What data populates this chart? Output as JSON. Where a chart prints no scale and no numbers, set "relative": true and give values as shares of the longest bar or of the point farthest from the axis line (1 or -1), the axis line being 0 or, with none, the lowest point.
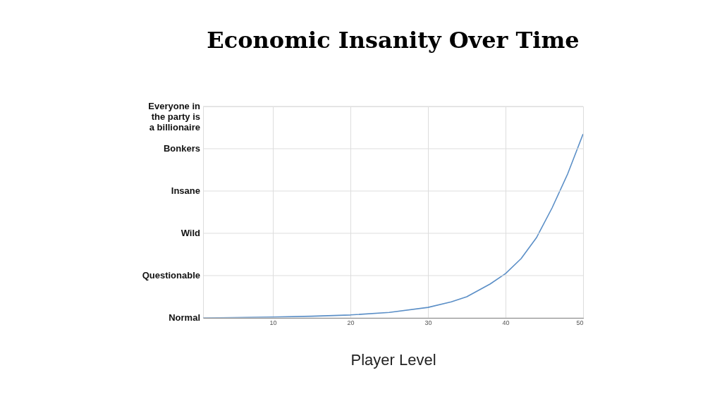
{
  "chart_data": {
    "type": "line",
    "title": "Economic Insanity Over Time",
    "xlabel": "Player Level",
    "x": [
      1,
      5,
      10,
      15,
      20,
      25,
      30,
      33,
      35,
      38,
      40,
      42,
      44,
      46,
      48,
      50
    ],
    "series": [
      {
        "color": "#5b8fc7",
        "values": [
          0,
          0.002,
          0.005,
          0.009,
          0.016,
          0.03,
          0.057,
          0.087,
          0.115,
          0.184,
          0.241,
          0.322,
          0.437,
          0.598,
          0.782,
          1
        ]
      }
    ],
    "relative": true,
    "xlim": [
      1,
      50
    ],
    "xticks": [
      10,
      20,
      30,
      40,
      50
    ],
    "annotations": [
      "Normal",
      "Questionable",
      "Wild",
      "Insane",
      "Bonkers",
      "Everyone in the party is a billionaire"
    ],
    "grid": true,
    "marker": "none",
    "line_style": "solid"
  }
}
